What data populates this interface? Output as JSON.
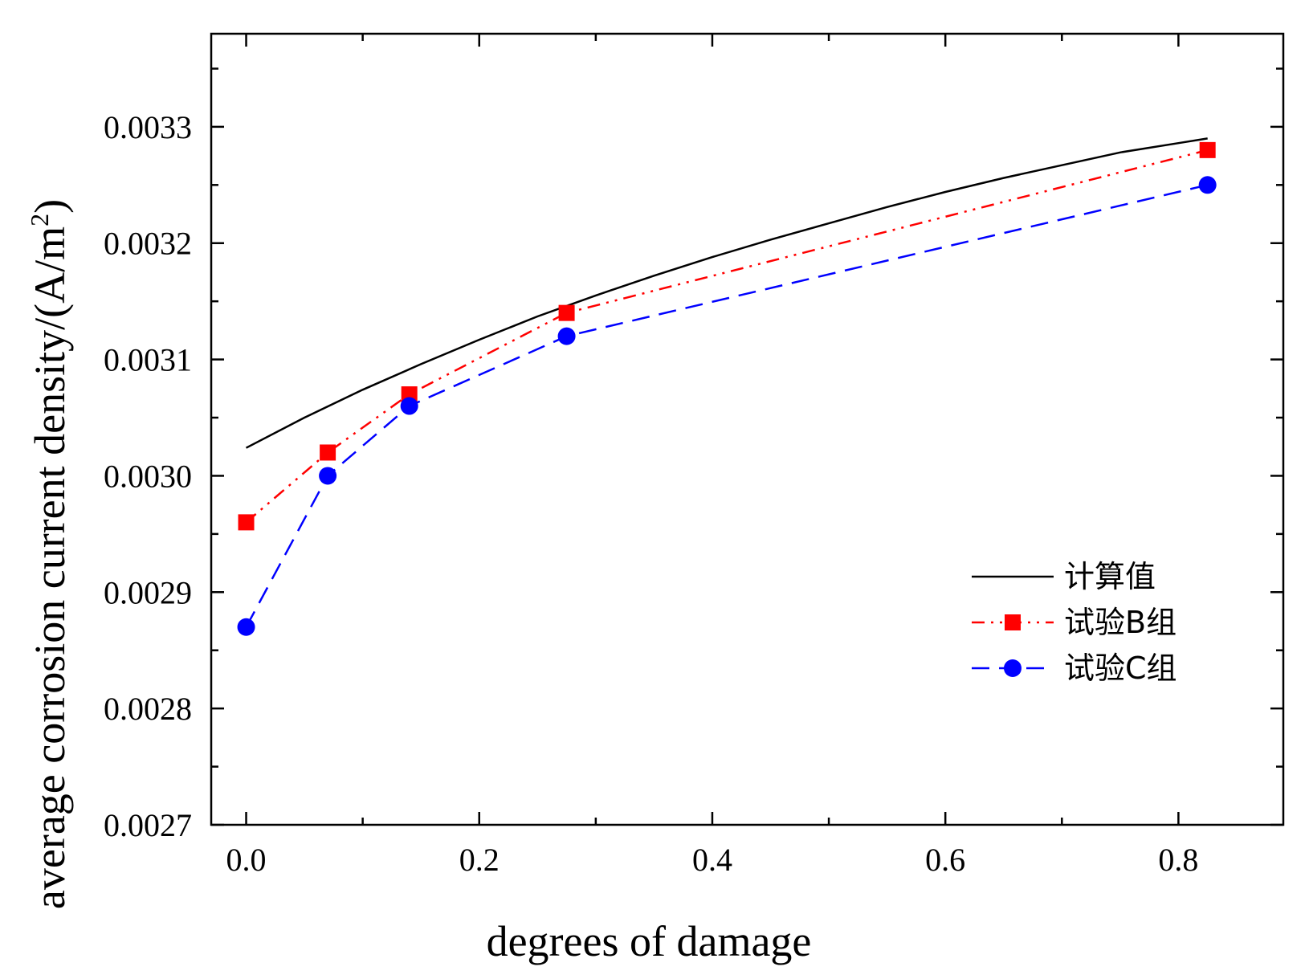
{
  "chart_data": {
    "type": "line",
    "title": "",
    "xlabel": "degrees of damage",
    "ylabel": "average corrosion current density/(A/m",
    "ylabel_sup": "2",
    "ylabel_close": ")",
    "xlim": [
      -0.03,
      0.89
    ],
    "ylim": [
      0.0027,
      0.00338
    ],
    "xticks": [
      0.0,
      0.2,
      0.4,
      0.6,
      0.8
    ],
    "xtick_labels": [
      "0.0",
      "0.2",
      "0.4",
      "0.6",
      "0.8"
    ],
    "xminor": [
      0.1,
      0.3,
      0.5,
      0.7
    ],
    "yticks": [
      0.0027,
      0.0028,
      0.0029,
      0.003,
      0.0031,
      0.0032,
      0.0033
    ],
    "ytick_labels": [
      "0.0027",
      "0.0028",
      "0.0029",
      "0.0030",
      "0.0031",
      "0.0032",
      "0.0033"
    ],
    "yminor": [
      0.00275,
      0.00285,
      0.00295,
      0.00305,
      0.00315,
      0.00325,
      0.00335
    ],
    "grid": false,
    "legend_position": "lower-right",
    "series": [
      {
        "name": "计算值",
        "style": "solid",
        "marker": "none",
        "color": "#000000",
        "x": [
          0.0,
          0.05,
          0.1,
          0.15,
          0.2,
          0.25,
          0.3,
          0.35,
          0.4,
          0.45,
          0.5,
          0.55,
          0.6,
          0.65,
          0.7,
          0.75,
          0.8,
          0.825
        ],
        "y": [
          0.003024,
          0.00305,
          0.003074,
          0.003096,
          0.003117,
          0.003137,
          0.003155,
          0.003172,
          0.003188,
          0.003203,
          0.003217,
          0.003231,
          0.003244,
          0.003256,
          0.003267,
          0.003278,
          0.003286,
          0.00329
        ]
      },
      {
        "name": "试验B组",
        "style": "dash-dot-dot",
        "marker": "square",
        "color": "#ff0000",
        "x": [
          0.0,
          0.07,
          0.14,
          0.275,
          0.825
        ],
        "y": [
          0.00296,
          0.00302,
          0.00307,
          0.00314,
          0.00328
        ]
      },
      {
        "name": "试验C组",
        "style": "dash",
        "marker": "circle",
        "color": "#0000ff",
        "x": [
          0.0,
          0.07,
          0.14,
          0.275,
          0.825
        ],
        "y": [
          0.00287,
          0.003,
          0.00306,
          0.00312,
          0.00325
        ]
      }
    ]
  }
}
